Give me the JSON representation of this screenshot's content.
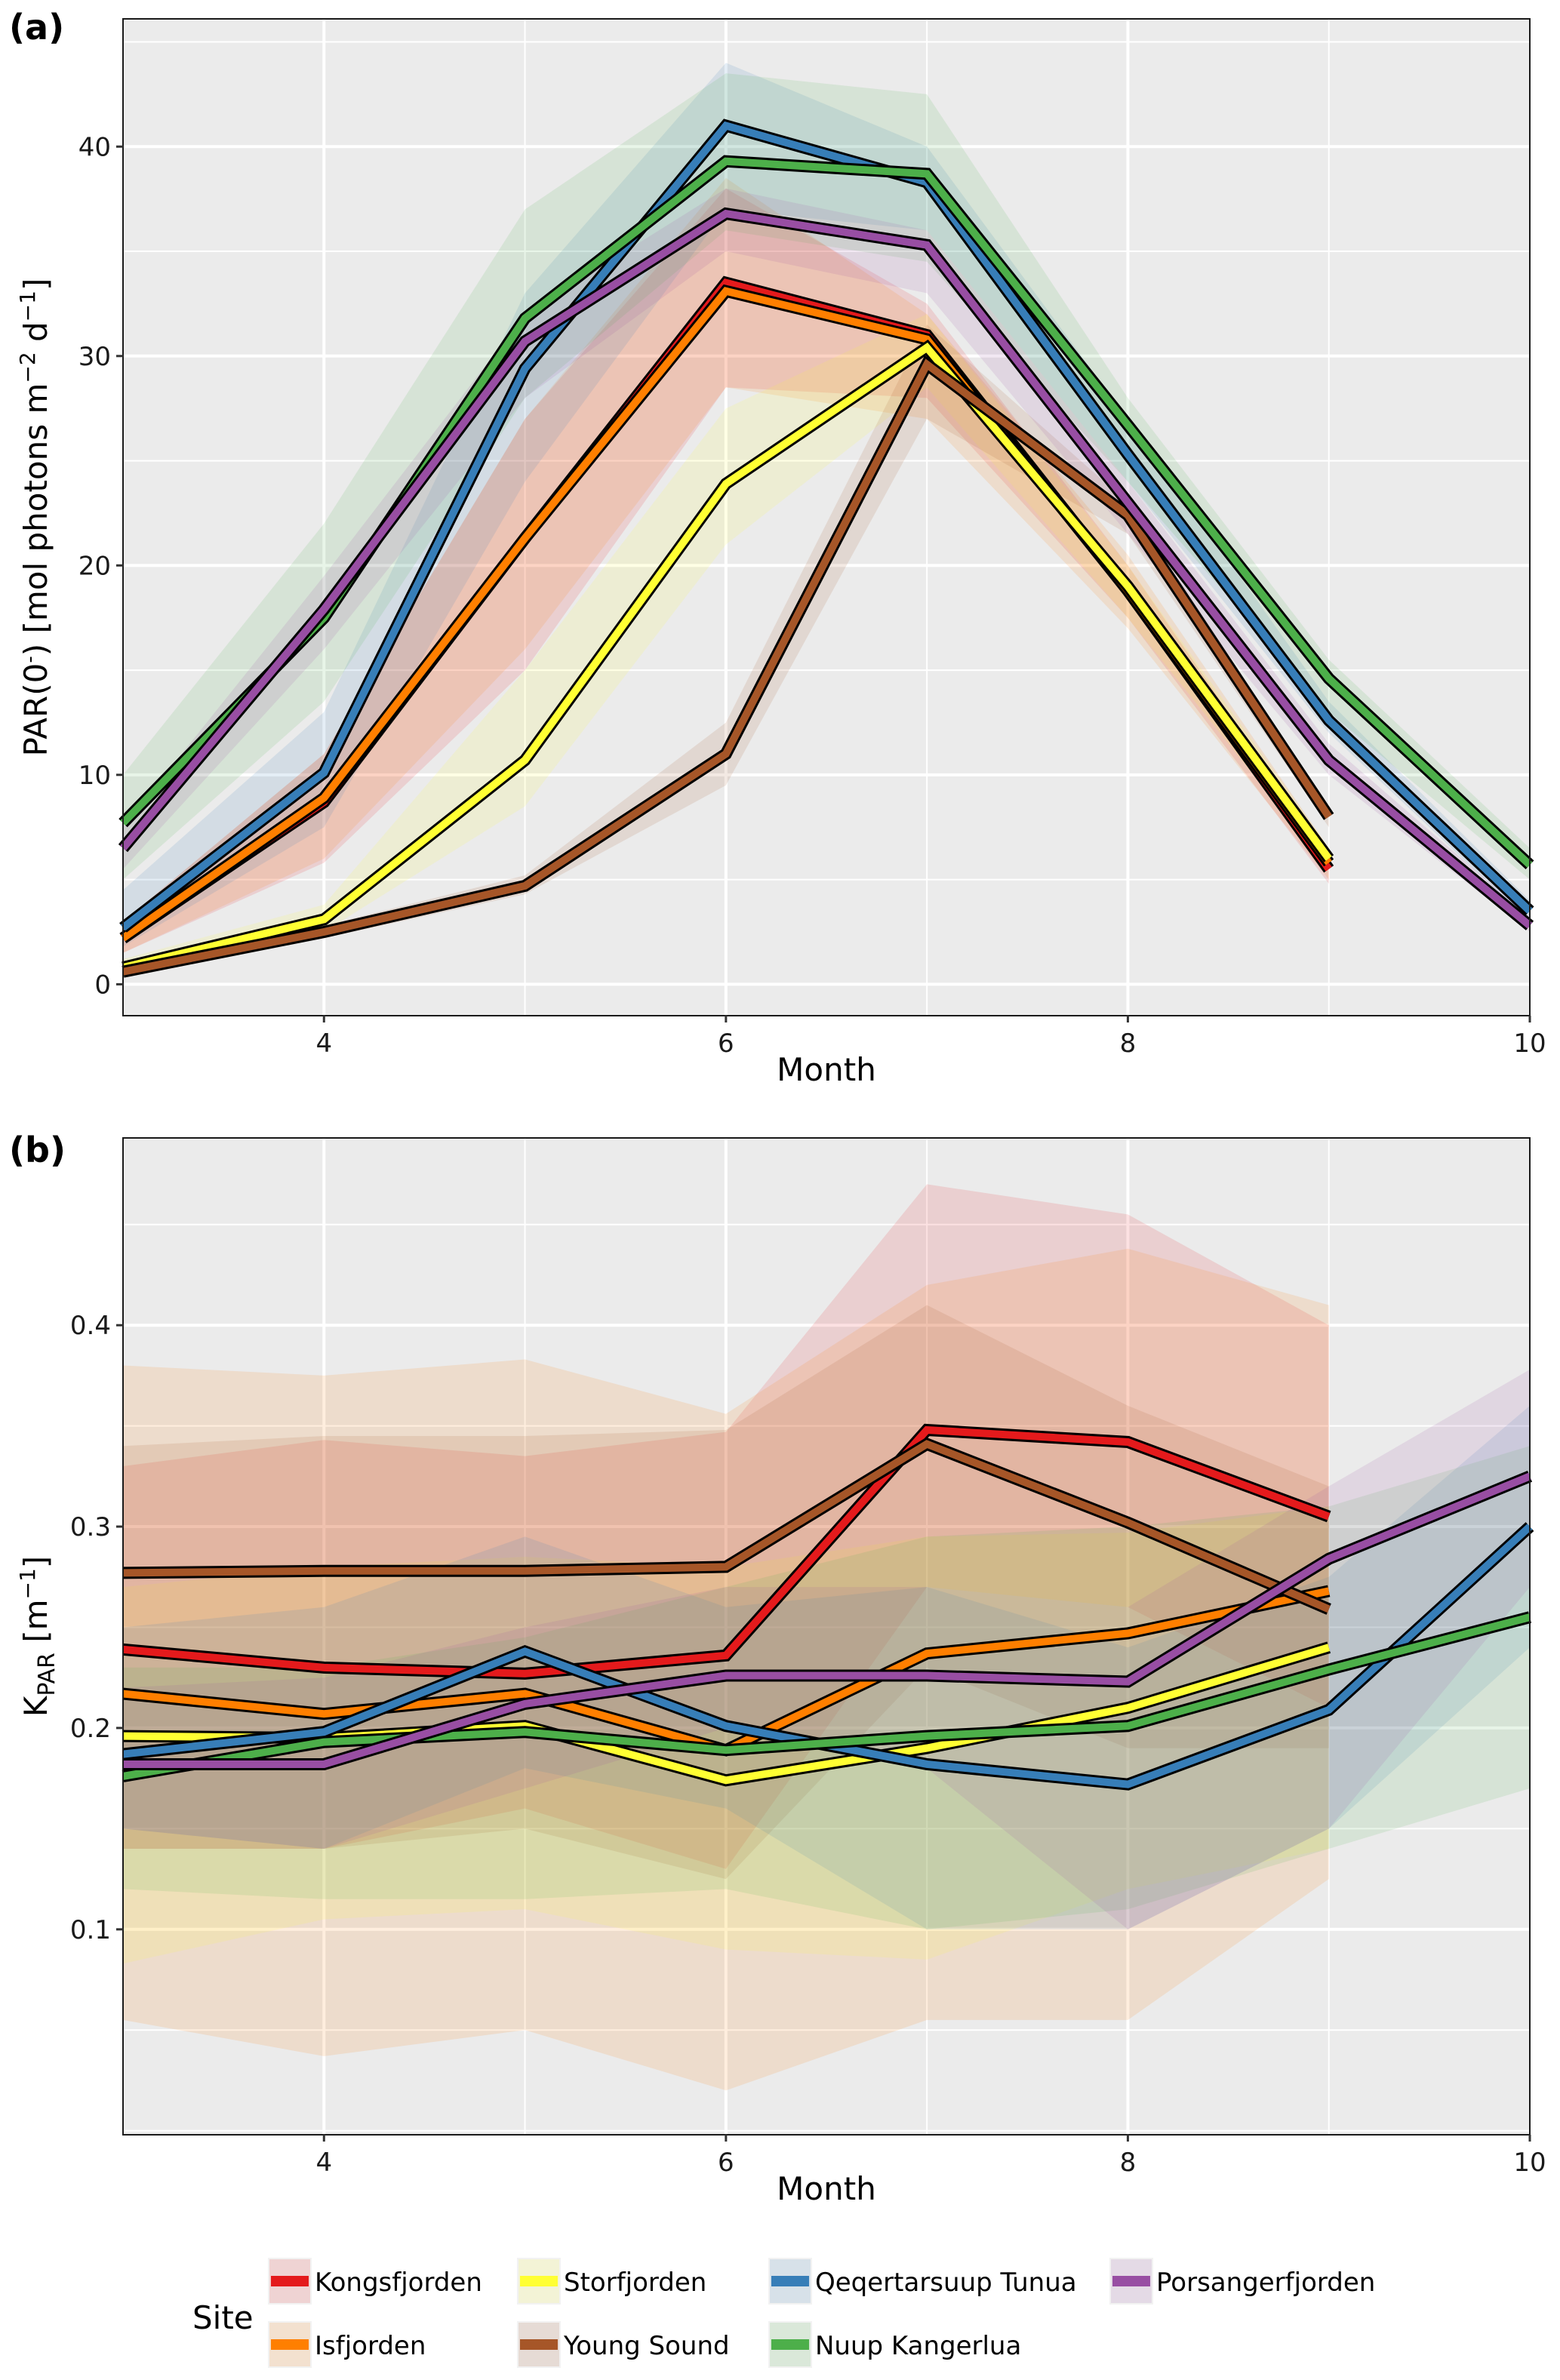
{
  "figure": {
    "legend": {
      "title": "Site",
      "placement": "bottom",
      "columns": 4
    }
  },
  "chart_data": [
    {
      "panel": "(a)",
      "type": "line",
      "title": "",
      "xlabel": "Month",
      "ylabel": "PAR(0⁻) [mol photons m⁻² d⁻¹]",
      "ylabel_parts": {
        "main": "PAR(0",
        "sup1": "-",
        "mid": ") [mol photons m",
        "sup2": "−2",
        "mid2": " d",
        "sup3": "−1",
        "end": "]"
      },
      "xlim": [
        3,
        10
      ],
      "ylim": [
        -1.5,
        46.1
      ],
      "x_ticks": [
        4,
        6,
        8,
        10
      ],
      "x_tick_labels": [
        "4",
        "6",
        "8",
        "10"
      ],
      "x_minor": [
        3,
        5,
        7,
        9
      ],
      "y_ticks": [
        0,
        10,
        20,
        30,
        40
      ],
      "y_tick_labels": [
        "0",
        "10",
        "20",
        "30",
        "40"
      ],
      "y_minor": [
        5,
        15,
        25,
        35,
        45
      ],
      "grid": true,
      "series": [
        {
          "name": "Kongsfjorden",
          "color": "#E41A1C",
          "x": [
            3,
            4,
            5,
            6,
            7,
            8,
            9
          ],
          "y": [
            2.2,
            8.7,
            21.3,
            33.5,
            31.0,
            18.8,
            5.5
          ],
          "lo": [
            1.5,
            5.8,
            15,
            28.5,
            28,
            17.5,
            4.8
          ],
          "hi": [
            3.0,
            11,
            27,
            38,
            32.5,
            20,
            6
          ]
        },
        {
          "name": "Isfjorden",
          "color": "#FF7F00",
          "x": [
            3,
            4,
            5,
            6,
            7,
            8,
            9
          ],
          "y": [
            2.2,
            8.9,
            21.3,
            33.1,
            30.8,
            18.8,
            5.8
          ],
          "lo": [
            1.5,
            6,
            16,
            28.5,
            27,
            17,
            5
          ],
          "hi": [
            3,
            11,
            27,
            38.5,
            32,
            20.5,
            6.5
          ]
        },
        {
          "name": "Storfjorden",
          "color": "#FFFF33",
          "x": [
            3,
            4,
            5,
            6,
            7,
            8,
            9
          ],
          "y": [
            0.8,
            3.1,
            10.7,
            23.9,
            30.4,
            19.0,
            6.0
          ],
          "lo": [
            0.5,
            2.5,
            8.5,
            21,
            28.5,
            17.5,
            5.5
          ],
          "hi": [
            1.2,
            3.8,
            15,
            27.5,
            32,
            20,
            6.5
          ]
        },
        {
          "name": "Young Sound",
          "color": "#A65628",
          "x": [
            3,
            4,
            5,
            6,
            7,
            8,
            9
          ],
          "y": [
            0.6,
            2.5,
            4.7,
            11.0,
            29.6,
            22.4,
            8.0
          ],
          "lo": [
            0.3,
            2.2,
            4.3,
            9.5,
            27,
            21.5,
            7.5
          ],
          "hi": [
            0.9,
            2.8,
            5.2,
            12.5,
            31.5,
            23,
            8.5
          ]
        },
        {
          "name": "Qeqertarsuup Tunua",
          "color": "#377EB8",
          "x": [
            3,
            4,
            5,
            6,
            7,
            8,
            9,
            10
          ],
          "y": [
            2.7,
            10.1,
            29.4,
            41.0,
            38.3,
            25.3,
            12.6,
            3.5
          ],
          "lo": [
            1.8,
            7.5,
            24,
            37,
            36,
            24,
            12,
            3
          ],
          "hi": [
            4.5,
            13,
            33,
            44,
            40,
            27,
            13.5,
            4
          ]
        },
        {
          "name": "Nuup Kangerlua",
          "color": "#4DAF4A",
          "x": [
            3,
            4,
            5,
            6,
            7,
            8,
            9,
            10
          ],
          "y": [
            7.7,
            17.5,
            31.8,
            39.3,
            38.7,
            26.7,
            14.6,
            5.7
          ],
          "lo": [
            5,
            13.5,
            28,
            36,
            34.5,
            24,
            13,
            5
          ],
          "hi": [
            10,
            22,
            37,
            43.5,
            42.5,
            28,
            15.5,
            6.5
          ]
        },
        {
          "name": "Porsangerfjorden",
          "color": "#984EA3",
          "x": [
            3,
            4,
            5,
            6,
            7,
            8,
            9,
            10
          ],
          "y": [
            6.5,
            17.9,
            30.7,
            36.8,
            35.3,
            23.0,
            10.7,
            2.8
          ],
          "lo": [
            5.5,
            16,
            28,
            35,
            33,
            21.5,
            10,
            2.5
          ],
          "hi": [
            7.5,
            19.5,
            32,
            38,
            36,
            24,
            11.5,
            3.2
          ]
        }
      ]
    },
    {
      "panel": "(b)",
      "type": "line",
      "title": "",
      "xlabel": "Month",
      "ylabel": "K_PAR [m⁻¹]",
      "ylabel_parts": {
        "main": "K",
        "sub": "PAR",
        "mid": " [m",
        "sup": "−1",
        "end": "]"
      },
      "xlim": [
        3,
        10
      ],
      "ylim": [
        -0.002,
        0.493
      ],
      "x_ticks": [
        4,
        6,
        8,
        10
      ],
      "x_tick_labels": [
        "4",
        "6",
        "8",
        "10"
      ],
      "x_minor": [
        3,
        5,
        7,
        9
      ],
      "y_ticks": [
        0.1,
        0.2,
        0.3,
        0.4
      ],
      "y_tick_labels": [
        "0.1",
        "0.2",
        "0.3",
        "0.4"
      ],
      "y_minor": [
        0.0,
        0.05,
        0.15,
        0.25,
        0.35,
        0.45
      ],
      "grid": true,
      "series": [
        {
          "name": "Kongsfjorden",
          "color": "#E41A1C",
          "x": [
            3,
            4,
            5,
            6,
            7,
            8,
            9
          ],
          "y": [
            0.239,
            0.23,
            0.227,
            0.236,
            0.348,
            0.342,
            0.305
          ],
          "lo": [
            0.14,
            0.14,
            0.16,
            0.13,
            0.27,
            0.26,
            0.21
          ],
          "hi": [
            0.33,
            0.343,
            0.335,
            0.347,
            0.47,
            0.455,
            0.4
          ]
        },
        {
          "name": "Isfjorden",
          "color": "#FF7F00",
          "x": [
            3,
            4,
            5,
            6,
            7,
            8,
            9
          ],
          "y": [
            0.217,
            0.207,
            0.217,
            0.189,
            0.237,
            0.247,
            0.268
          ],
          "lo": [
            0.055,
            0.037,
            0.05,
            0.02,
            0.055,
            0.055,
            0.125
          ],
          "hi": [
            0.38,
            0.375,
            0.383,
            0.356,
            0.42,
            0.438,
            0.41
          ]
        },
        {
          "name": "Storfjorden",
          "color": "#FFFF33",
          "x": [
            3,
            4,
            5,
            6,
            7,
            8,
            9
          ],
          "y": [
            0.196,
            0.195,
            0.201,
            0.174,
            0.19,
            0.21,
            0.24
          ],
          "lo": [
            0.083,
            0.105,
            0.11,
            0.09,
            0.085,
            0.12,
            0.14
          ],
          "hi": [
            0.27,
            0.28,
            0.285,
            0.28,
            0.295,
            0.297,
            0.31
          ]
        },
        {
          "name": "Young Sound",
          "color": "#A65628",
          "x": [
            3,
            4,
            5,
            6,
            7,
            8,
            9
          ],
          "y": [
            0.277,
            0.278,
            0.278,
            0.28,
            0.341,
            0.302,
            0.259
          ],
          "lo": [
            0.14,
            0.14,
            0.15,
            0.125,
            0.23,
            0.19,
            0.19
          ],
          "hi": [
            0.34,
            0.345,
            0.345,
            0.348,
            0.41,
            0.36,
            0.32
          ]
        },
        {
          "name": "Qeqertarsuup Tunua",
          "color": "#377EB8",
          "x": [
            3,
            4,
            5,
            6,
            7,
            8,
            9,
            10
          ],
          "y": [
            0.187,
            0.198,
            0.238,
            0.201,
            0.182,
            0.172,
            0.209,
            0.3
          ],
          "lo": [
            0.15,
            0.14,
            0.18,
            0.16,
            0.1,
            0.1,
            0.15,
            0.24
          ],
          "hi": [
            0.25,
            0.26,
            0.295,
            0.26,
            0.27,
            0.24,
            0.275,
            0.36
          ]
        },
        {
          "name": "Nuup Kangerlua",
          "color": "#4DAF4A",
          "x": [
            3,
            4,
            5,
            6,
            7,
            8,
            9,
            10
          ],
          "y": [
            0.176,
            0.193,
            0.198,
            0.189,
            0.196,
            0.201,
            0.229,
            0.255
          ],
          "lo": [
            0.12,
            0.115,
            0.115,
            0.12,
            0.1,
            0.11,
            0.14,
            0.17
          ],
          "hi": [
            0.23,
            0.23,
            0.245,
            0.27,
            0.295,
            0.3,
            0.31,
            0.34
          ]
        },
        {
          "name": "Porsangerfjorden",
          "color": "#984EA3",
          "x": [
            3,
            4,
            5,
            6,
            7,
            8,
            9,
            10
          ],
          "y": [
            0.182,
            0.182,
            0.212,
            0.226,
            0.226,
            0.223,
            0.284,
            0.325
          ],
          "lo": [
            0.15,
            0.14,
            0.17,
            0.2,
            0.18,
            0.1,
            0.15,
            0.27
          ],
          "hi": [
            0.22,
            0.225,
            0.25,
            0.27,
            0.27,
            0.26,
            0.32,
            0.378
          ]
        }
      ]
    }
  ],
  "legend_order": [
    "Kongsfjorden",
    "Isfjorden",
    "Storfjorden",
    "Young Sound",
    "Qeqertarsuup Tunua",
    "Nuup Kangerlua",
    "Porsangerfjorden"
  ]
}
